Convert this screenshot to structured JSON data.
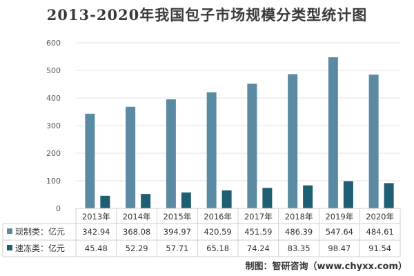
{
  "chart_data": {
    "type": "bar",
    "title": "2013-2020年我国包子市场规模分类型统计图",
    "categories": [
      "2013年",
      "2014年",
      "2015年",
      "2016年",
      "2017年",
      "2018年",
      "2019年",
      "2020年"
    ],
    "series": [
      {
        "name": "现制类：亿元",
        "color": "#5b8aa3",
        "values": [
          342.94,
          368.08,
          394.97,
          420.59,
          451.59,
          486.39,
          547.64,
          484.61
        ],
        "labels": [
          "342.94",
          "368.08",
          "394.97",
          "420.59",
          "451.59",
          "486.39",
          "547.64",
          "484.61"
        ]
      },
      {
        "name": "速冻类：亿元",
        "color": "#1f5f73",
        "values": [
          45.48,
          52.29,
          57.71,
          65.18,
          74.24,
          83.35,
          98.47,
          91.54
        ],
        "labels": [
          "45.48",
          "52.29",
          "57.71",
          "65.18",
          "74.24",
          "83.35",
          "98.47",
          "91.54"
        ]
      }
    ],
    "ylim": [
      0,
      600
    ],
    "yticks": [
      0,
      100,
      200,
      300,
      400,
      500,
      600
    ],
    "grid": true,
    "legend": "data-table-below"
  },
  "source": "制图：智研咨询（www.chyxx.com）"
}
